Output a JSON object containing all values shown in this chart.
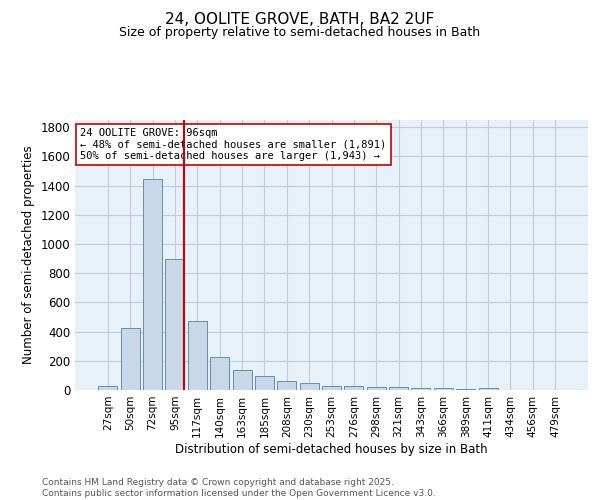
{
  "title": "24, OOLITE GROVE, BATH, BA2 2UF",
  "subtitle": "Size of property relative to semi-detached houses in Bath",
  "xlabel": "Distribution of semi-detached houses by size in Bath",
  "ylabel": "Number of semi-detached properties",
  "bar_categories": [
    "27sqm",
    "50sqm",
    "72sqm",
    "95sqm",
    "117sqm",
    "140sqm",
    "163sqm",
    "185sqm",
    "208sqm",
    "230sqm",
    "253sqm",
    "276sqm",
    "298sqm",
    "321sqm",
    "343sqm",
    "366sqm",
    "389sqm",
    "411sqm",
    "434sqm",
    "456sqm",
    "479sqm"
  ],
  "bar_values": [
    28,
    425,
    1445,
    900,
    470,
    225,
    135,
    95,
    60,
    45,
    30,
    30,
    20,
    20,
    15,
    15,
    10,
    15,
    0,
    0,
    0
  ],
  "bar_color": "#c8d8e8",
  "bar_edge_color": "#6090b0",
  "grid_color": "#c0ccd8",
  "background_color": "#e8f0f8",
  "vline_color": "#cc0000",
  "annotation_text": "24 OOLITE GROVE: 96sqm\n← 48% of semi-detached houses are smaller (1,891)\n50% of semi-detached houses are larger (1,943) →",
  "annotation_box_color": "white",
  "annotation_box_edge": "#cc0000",
  "ylim": [
    0,
    1850
  ],
  "yticks": [
    0,
    200,
    400,
    600,
    800,
    1000,
    1200,
    1400,
    1600,
    1800
  ],
  "footer_line1": "Contains HM Land Registry data © Crown copyright and database right 2025.",
  "footer_line2": "Contains public sector information licensed under the Open Government Licence v3.0."
}
